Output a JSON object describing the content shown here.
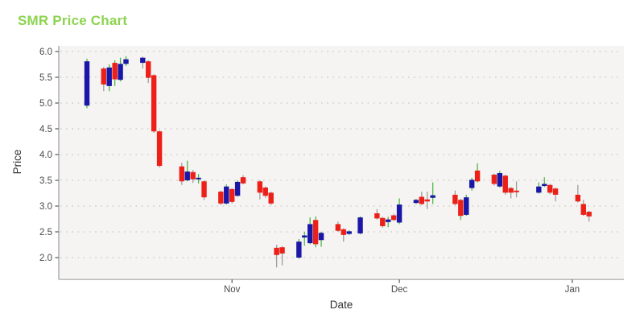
{
  "header": {
    "title": "SMR Price Chart"
  },
  "chart_data": {
    "type": "candlestick",
    "title": "SMR Price Chart",
    "xlabel": "Date",
    "ylabel": "Price",
    "ylim": [
      1.6,
      6.1
    ],
    "grid": "horizontal-dotted",
    "legend": "none",
    "yticks": [
      {
        "label": "6.0",
        "value": 6.0
      },
      {
        "label": "5.5",
        "value": 5.5
      },
      {
        "label": "5.0",
        "value": 5.0
      },
      {
        "label": "4.5",
        "value": 4.5
      },
      {
        "label": "4.0",
        "value": 4.0
      },
      {
        "label": "3.5",
        "value": 3.5
      },
      {
        "label": "3.0",
        "value": 3.0
      },
      {
        "label": "2.5",
        "value": 2.5
      },
      {
        "label": "2.0",
        "value": 2.0
      }
    ],
    "xticks": [
      {
        "label": "Nov",
        "day": 26
      },
      {
        "label": "Dec",
        "day": 56
      },
      {
        "label": "Jan",
        "day": 87
      }
    ],
    "colors": {
      "title": "#8cd450",
      "up_body": "#1a16a8",
      "down_body": "#ec2018",
      "wick_green": "#4db847",
      "wick_gray": "#9e9e9e",
      "panel_bg": "#f5f4f2",
      "grid_dot": "#cfcfcf",
      "axis_line": "#8a8a8a",
      "tick_text": "#4a4a4a",
      "axis_label_text": "#333333"
    },
    "candles": [
      {
        "date": "Oct 6",
        "day": 0,
        "o": 4.95,
        "h": 5.86,
        "l": 4.9,
        "c": 5.81,
        "dir": "up",
        "wick": "green"
      },
      {
        "date": "Oct 9",
        "day": 3,
        "o": 5.67,
        "h": 5.7,
        "l": 5.23,
        "c": 5.36,
        "dir": "down",
        "wick": "gray"
      },
      {
        "date": "Oct 10",
        "day": 4,
        "o": 5.33,
        "h": 5.75,
        "l": 5.23,
        "c": 5.69,
        "dir": "up",
        "wick": "green"
      },
      {
        "date": "Oct 11",
        "day": 5,
        "o": 5.78,
        "h": 5.83,
        "l": 5.33,
        "c": 5.46,
        "dir": "down",
        "wick": "green"
      },
      {
        "date": "Oct 12",
        "day": 6,
        "o": 5.45,
        "h": 5.88,
        "l": 5.42,
        "c": 5.76,
        "dir": "up",
        "wick": "green"
      },
      {
        "date": "Oct 13",
        "day": 7,
        "o": 5.76,
        "h": 5.91,
        "l": 5.72,
        "c": 5.85,
        "dir": "up",
        "wick": "green"
      },
      {
        "date": "Oct 16",
        "day": 10,
        "o": 5.78,
        "h": 5.9,
        "l": 5.67,
        "c": 5.88,
        "dir": "up",
        "wick": "gray"
      },
      {
        "date": "Oct 17",
        "day": 11,
        "o": 5.81,
        "h": 5.83,
        "l": 5.39,
        "c": 5.49,
        "dir": "down",
        "wick": "gray"
      },
      {
        "date": "Oct 18",
        "day": 12,
        "o": 5.54,
        "h": 5.56,
        "l": 4.42,
        "c": 4.45,
        "dir": "down",
        "wick": "gray"
      },
      {
        "date": "Oct 19",
        "day": 13,
        "o": 4.45,
        "h": 4.47,
        "l": 3.75,
        "c": 3.78,
        "dir": "down",
        "wick": "gray"
      },
      {
        "date": "Oct 23",
        "day": 17,
        "o": 3.77,
        "h": 3.84,
        "l": 3.41,
        "c": 3.48,
        "dir": "down",
        "wick": "gray"
      },
      {
        "date": "Oct 24",
        "day": 18,
        "o": 3.5,
        "h": 3.88,
        "l": 3.48,
        "c": 3.67,
        "dir": "up",
        "wick": "green"
      },
      {
        "date": "Oct 25",
        "day": 19,
        "o": 3.66,
        "h": 3.7,
        "l": 3.45,
        "c": 3.52,
        "dir": "down",
        "wick": "gray"
      },
      {
        "date": "Oct 26",
        "day": 20,
        "o": 3.53,
        "h": 3.62,
        "l": 3.44,
        "c": 3.55,
        "dir": "up",
        "wick": "green"
      },
      {
        "date": "Oct 27",
        "day": 21,
        "o": 3.48,
        "h": 3.5,
        "l": 3.12,
        "c": 3.17,
        "dir": "down",
        "wick": "gray"
      },
      {
        "date": "Oct 30",
        "day": 24,
        "o": 3.28,
        "h": 3.3,
        "l": 3.02,
        "c": 3.05,
        "dir": "down",
        "wick": "gray"
      },
      {
        "date": "Oct 31",
        "day": 25,
        "o": 3.05,
        "h": 3.42,
        "l": 3.03,
        "c": 3.38,
        "dir": "up",
        "wick": "green"
      },
      {
        "date": "Nov 1",
        "day": 26,
        "o": 3.33,
        "h": 3.35,
        "l": 3.05,
        "c": 3.08,
        "dir": "down",
        "wick": "gray"
      },
      {
        "date": "Nov 2",
        "day": 27,
        "o": 3.2,
        "h": 3.5,
        "l": 3.18,
        "c": 3.47,
        "dir": "up",
        "wick": "green"
      },
      {
        "date": "Nov 3",
        "day": 28,
        "o": 3.56,
        "h": 3.6,
        "l": 3.42,
        "c": 3.44,
        "dir": "down",
        "wick": "gray"
      },
      {
        "date": "Nov 6",
        "day": 31,
        "o": 3.48,
        "h": 3.5,
        "l": 3.13,
        "c": 3.26,
        "dir": "down",
        "wick": "gray"
      },
      {
        "date": "Nov 7",
        "day": 32,
        "o": 3.36,
        "h": 3.38,
        "l": 3.16,
        "c": 3.2,
        "dir": "down",
        "wick": "gray"
      },
      {
        "date": "Nov 8",
        "day": 33,
        "o": 3.26,
        "h": 3.28,
        "l": 3.02,
        "c": 3.05,
        "dir": "down",
        "wick": "gray"
      },
      {
        "date": "Nov 9",
        "day": 34,
        "o": 2.19,
        "h": 2.25,
        "l": 1.81,
        "c": 2.05,
        "dir": "down",
        "wick": "gray"
      },
      {
        "date": "Nov 10",
        "day": 35,
        "o": 2.2,
        "h": 2.22,
        "l": 1.85,
        "c": 2.08,
        "dir": "down",
        "wick": "gray"
      },
      {
        "date": "Nov 13",
        "day": 38,
        "o": 2.0,
        "h": 2.36,
        "l": 1.98,
        "c": 2.31,
        "dir": "up",
        "wick": "green"
      },
      {
        "date": "Nov 14",
        "day": 39,
        "o": 2.39,
        "h": 2.5,
        "l": 2.23,
        "c": 2.43,
        "dir": "up",
        "wick": "green"
      },
      {
        "date": "Nov 15",
        "day": 40,
        "o": 2.28,
        "h": 2.78,
        "l": 2.26,
        "c": 2.65,
        "dir": "up",
        "wick": "green"
      },
      {
        "date": "Nov 16",
        "day": 41,
        "o": 2.73,
        "h": 2.8,
        "l": 2.2,
        "c": 2.26,
        "dir": "down",
        "wick": "green"
      },
      {
        "date": "Nov 17",
        "day": 42,
        "o": 2.34,
        "h": 2.5,
        "l": 2.21,
        "c": 2.48,
        "dir": "up",
        "wick": "green"
      },
      {
        "date": "Nov 20",
        "day": 45,
        "o": 2.65,
        "h": 2.7,
        "l": 2.5,
        "c": 2.52,
        "dir": "down",
        "wick": "gray"
      },
      {
        "date": "Nov 21",
        "day": 46,
        "o": 2.55,
        "h": 2.57,
        "l": 2.31,
        "c": 2.44,
        "dir": "down",
        "wick": "gray"
      },
      {
        "date": "Nov 22",
        "day": 47,
        "o": 2.46,
        "h": 2.53,
        "l": 2.44,
        "c": 2.51,
        "dir": "up",
        "wick": "green"
      },
      {
        "date": "Nov 24",
        "day": 49,
        "o": 2.47,
        "h": 2.8,
        "l": 2.45,
        "c": 2.78,
        "dir": "up",
        "wick": "green"
      },
      {
        "date": "Nov 27",
        "day": 52,
        "o": 2.86,
        "h": 2.94,
        "l": 2.74,
        "c": 2.76,
        "dir": "down",
        "wick": "gray"
      },
      {
        "date": "Nov 28",
        "day": 53,
        "o": 2.77,
        "h": 2.79,
        "l": 2.58,
        "c": 2.61,
        "dir": "down",
        "wick": "gray"
      },
      {
        "date": "Nov 29",
        "day": 54,
        "o": 2.69,
        "h": 2.79,
        "l": 2.59,
        "c": 2.74,
        "dir": "up",
        "wick": "green"
      },
      {
        "date": "Nov 30",
        "day": 55,
        "o": 2.82,
        "h": 2.85,
        "l": 2.71,
        "c": 2.73,
        "dir": "down",
        "wick": "gray"
      },
      {
        "date": "Dec 1",
        "day": 56,
        "o": 2.68,
        "h": 3.15,
        "l": 2.65,
        "c": 3.03,
        "dir": "up",
        "wick": "green"
      },
      {
        "date": "Dec 4",
        "day": 59,
        "o": 3.06,
        "h": 3.14,
        "l": 3.04,
        "c": 3.12,
        "dir": "up",
        "wick": "green"
      },
      {
        "date": "Dec 5",
        "day": 60,
        "o": 3.18,
        "h": 3.28,
        "l": 3.02,
        "c": 3.04,
        "dir": "down",
        "wick": "gray"
      },
      {
        "date": "Dec 6",
        "day": 61,
        "o": 3.13,
        "h": 3.28,
        "l": 2.94,
        "c": 3.09,
        "dir": "down",
        "wick": "gray"
      },
      {
        "date": "Dec 7",
        "day": 62,
        "o": 3.16,
        "h": 3.46,
        "l": 3.04,
        "c": 3.21,
        "dir": "up",
        "wick": "green"
      },
      {
        "date": "Dec 11",
        "day": 66,
        "o": 3.22,
        "h": 3.3,
        "l": 3.02,
        "c": 3.04,
        "dir": "down",
        "wick": "gray"
      },
      {
        "date": "Dec 12",
        "day": 67,
        "o": 3.12,
        "h": 3.14,
        "l": 2.73,
        "c": 2.81,
        "dir": "down",
        "wick": "green"
      },
      {
        "date": "Dec 13",
        "day": 68,
        "o": 2.83,
        "h": 3.22,
        "l": 2.81,
        "c": 3.17,
        "dir": "up",
        "wick": "green"
      },
      {
        "date": "Dec 14",
        "day": 69,
        "o": 3.35,
        "h": 3.55,
        "l": 3.3,
        "c": 3.51,
        "dir": "up",
        "wick": "green"
      },
      {
        "date": "Dec 15",
        "day": 70,
        "o": 3.69,
        "h": 3.83,
        "l": 3.46,
        "c": 3.48,
        "dir": "down",
        "wick": "green"
      },
      {
        "date": "Dec 18",
        "day": 73,
        "o": 3.61,
        "h": 3.63,
        "l": 3.4,
        "c": 3.43,
        "dir": "down",
        "wick": "gray"
      },
      {
        "date": "Dec 19",
        "day": 74,
        "o": 3.38,
        "h": 3.68,
        "l": 3.36,
        "c": 3.64,
        "dir": "up",
        "wick": "green"
      },
      {
        "date": "Dec 20",
        "day": 75,
        "o": 3.59,
        "h": 3.61,
        "l": 3.22,
        "c": 3.26,
        "dir": "down",
        "wick": "gray"
      },
      {
        "date": "Dec 21",
        "day": 76,
        "o": 3.35,
        "h": 3.37,
        "l": 3.15,
        "c": 3.26,
        "dir": "down",
        "wick": "gray"
      },
      {
        "date": "Dec 22",
        "day": 77,
        "o": 3.3,
        "h": 3.48,
        "l": 3.17,
        "c": 3.27,
        "dir": "down",
        "wick": "gray"
      },
      {
        "date": "Dec 26",
        "day": 81,
        "o": 3.26,
        "h": 3.46,
        "l": 3.24,
        "c": 3.38,
        "dir": "up",
        "wick": "green"
      },
      {
        "date": "Dec 27",
        "day": 82,
        "o": 3.39,
        "h": 3.56,
        "l": 3.37,
        "c": 3.43,
        "dir": "up",
        "wick": "green"
      },
      {
        "date": "Dec 28",
        "day": 83,
        "o": 3.41,
        "h": 3.43,
        "l": 3.23,
        "c": 3.26,
        "dir": "down",
        "wick": "gray"
      },
      {
        "date": "Dec 29",
        "day": 84,
        "o": 3.34,
        "h": 3.36,
        "l": 3.09,
        "c": 3.22,
        "dir": "down",
        "wick": "gray"
      },
      {
        "date": "Jan 2",
        "day": 88,
        "o": 3.22,
        "h": 3.41,
        "l": 3.07,
        "c": 3.09,
        "dir": "down",
        "wick": "gray"
      },
      {
        "date": "Jan 3",
        "day": 89,
        "o": 3.04,
        "h": 3.12,
        "l": 2.81,
        "c": 2.83,
        "dir": "down",
        "wick": "gray"
      },
      {
        "date": "Jan 4",
        "day": 90,
        "o": 2.89,
        "h": 2.91,
        "l": 2.7,
        "c": 2.8,
        "dir": "down",
        "wick": "gray"
      }
    ]
  }
}
